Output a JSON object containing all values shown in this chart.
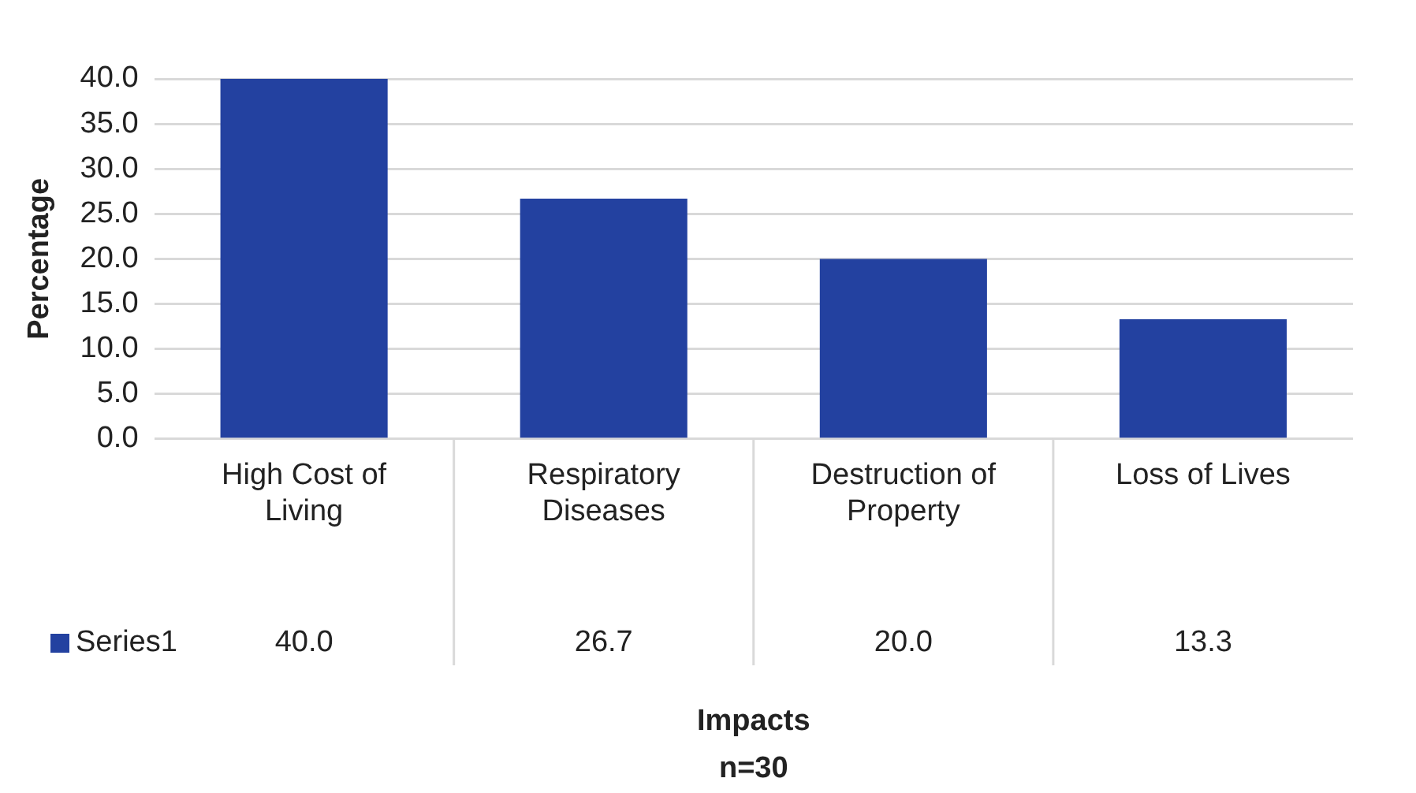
{
  "chart_data": {
    "type": "bar",
    "ylabel": "Percentage",
    "annotations": [
      "Impacts",
      "n=30"
    ],
    "categories": [
      "High Cost of Living",
      "Respiratory Diseases",
      "Destruction of Property",
      "Loss of Lives"
    ],
    "series": [
      {
        "name": "Series1",
        "color": "#2341a0",
        "values": [
          40.0,
          26.7,
          20.0,
          13.3
        ],
        "value_labels": [
          "40.0",
          "26.7",
          "20.0",
          "13.3"
        ]
      }
    ],
    "ylim": [
      0,
      40
    ],
    "yticks": [
      {
        "value": 0,
        "label": "0.0"
      },
      {
        "value": 5,
        "label": "5.0"
      },
      {
        "value": 10,
        "label": "10.0"
      },
      {
        "value": 15,
        "label": "15.0"
      },
      {
        "value": 20,
        "label": "20.0"
      },
      {
        "value": 25,
        "label": "25.0"
      },
      {
        "value": 30,
        "label": "30.0"
      },
      {
        "value": 35,
        "label": "35.0"
      },
      {
        "value": 40,
        "label": "40.0"
      }
    ],
    "grid": "y",
    "legend": "bottom left"
  }
}
